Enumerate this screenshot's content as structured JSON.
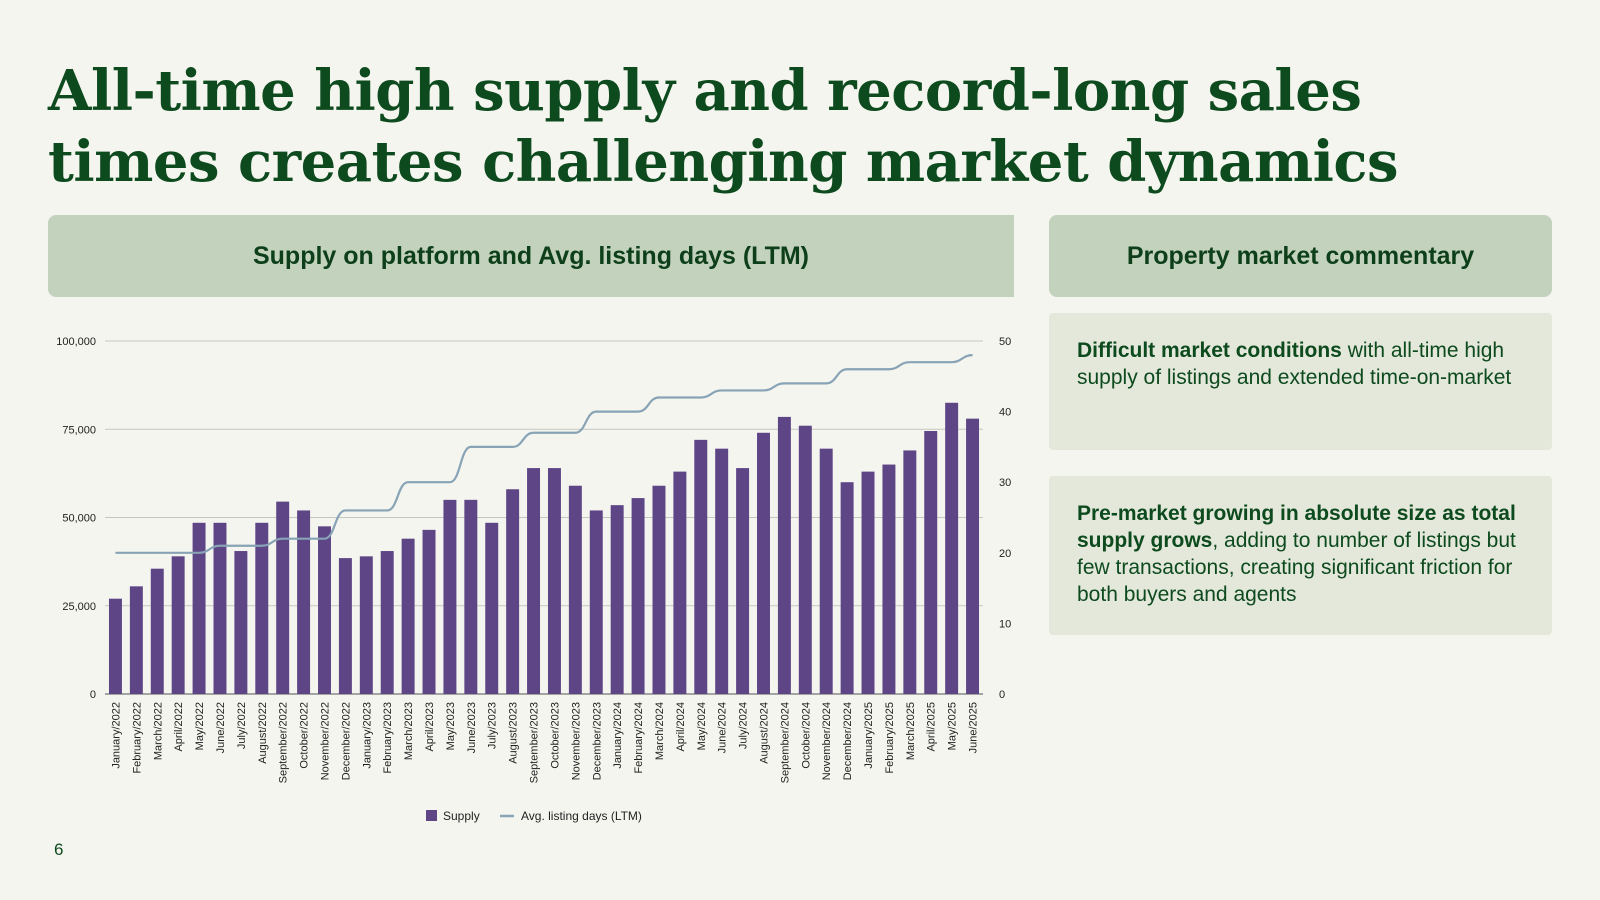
{
  "slide": {
    "title": "All-time high supply and record-long sales times creates challenging market dynamics",
    "page_number": "6"
  },
  "chart_panel": {
    "header": "Supply on platform and Avg. listing days (LTM)"
  },
  "commentary": {
    "header": "Property market commentary",
    "items": [
      {
        "bold": "Difficult market conditions",
        "text": " with all-time high supply of listings and extended time-on-market"
      },
      {
        "bold": "Pre-market growing in absolute size as total supply grows",
        "text": ", adding to number of listings but few transactions, creating significant friction for both buyers and agents"
      }
    ]
  },
  "colors": {
    "bar": "#5e4686",
    "line": "#87a3b5",
    "title": "#0d4a1e",
    "header_bg": "#c3d2bd",
    "box_bg": "#e3e8da"
  },
  "chart_data": {
    "type": "bar",
    "categories": [
      "January/2022",
      "February/2022",
      "March/2022",
      "April/2022",
      "May/2022",
      "June/2022",
      "July/2022",
      "August/2022",
      "September/2022",
      "October/2022",
      "November/2022",
      "December/2022",
      "January/2023",
      "February/2023",
      "March/2023",
      "April/2023",
      "May/2023",
      "June/2023",
      "July/2023",
      "August/2023",
      "September/2023",
      "October/2023",
      "November/2023",
      "December/2023",
      "January/2024",
      "February/2024",
      "March/2024",
      "April/2024",
      "May/2024",
      "June/2024",
      "July/2024",
      "August/2024",
      "September/2024",
      "October/2024",
      "November/2024",
      "December/2024",
      "January/2025",
      "February/2025",
      "March/2025",
      "April/2025",
      "May/2025",
      "June/2025"
    ],
    "series": [
      {
        "name": "Supply",
        "type": "bar",
        "axis": "left",
        "values": [
          27000,
          30500,
          35500,
          39000,
          48500,
          48500,
          40500,
          48500,
          54500,
          52000,
          47500,
          38500,
          39000,
          40500,
          44000,
          46500,
          55000,
          55000,
          48500,
          58000,
          64000,
          64000,
          59000,
          52000,
          53500,
          55500,
          59000,
          63000,
          72000,
          69500,
          64000,
          74000,
          78500,
          76000,
          69500,
          60000,
          63000,
          65000,
          69000,
          74500,
          82500,
          78000
        ]
      },
      {
        "name": "Avg. listing days (LTM)",
        "type": "line",
        "axis": "right",
        "values": [
          20,
          20,
          20,
          20,
          20,
          21,
          21,
          21,
          22,
          22,
          22,
          26,
          26,
          26,
          30,
          30,
          30,
          35,
          35,
          35,
          37,
          37,
          37,
          40,
          40,
          40,
          42,
          42,
          42,
          43,
          43,
          43,
          44,
          44,
          44,
          46,
          46,
          46,
          47,
          47,
          47,
          48
        ]
      }
    ],
    "y_left": {
      "ticks": [
        "0",
        "25,000",
        "50,000",
        "75,000",
        "100,000"
      ],
      "range": [
        0,
        100000
      ]
    },
    "y_right": {
      "ticks": [
        "0",
        "10",
        "20",
        "30",
        "40",
        "50"
      ],
      "range": [
        0,
        50
      ]
    },
    "grid": true,
    "legend": "bottom"
  }
}
